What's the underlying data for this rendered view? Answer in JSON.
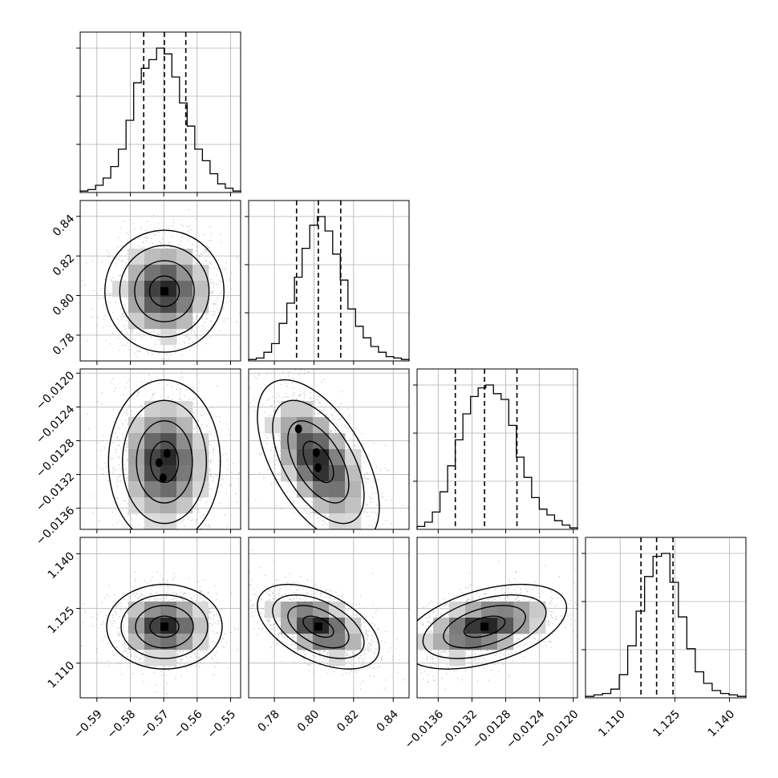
{
  "chart_data": {
    "type": "corner",
    "parameters": 4,
    "grid": true,
    "colors": {
      "line": "#000000",
      "grid": "#b0b0b0",
      "scatter": "#9a9a9a"
    },
    "histograms": [
      {
        "xlim": [
          -0.595,
          -0.547
        ],
        "counts": [
          1,
          2,
          5,
          10,
          18,
          30,
          50,
          76,
          86,
          92,
          100,
          96,
          80,
          62,
          46,
          30,
          22,
          13,
          6,
          3,
          1
        ],
        "quantiles": [
          -0.576,
          -0.5698,
          -0.5634
        ]
      },
      {
        "xlim": [
          0.767,
          0.848
        ],
        "counts": [
          1,
          2,
          6,
          12,
          26,
          40,
          58,
          78,
          94,
          100,
          90,
          74,
          56,
          36,
          24,
          16,
          10,
          6,
          3,
          2,
          1
        ],
        "quantiles": [
          0.7912,
          0.8022,
          0.8135
        ]
      },
      {
        "xlim": [
          -0.01385,
          -0.01195
        ],
        "counts": [
          2,
          5,
          12,
          26,
          44,
          62,
          80,
          92,
          98,
          100,
          94,
          90,
          72,
          50,
          36,
          22,
          14,
          10,
          6,
          3,
          1
        ],
        "quantiles": [
          -0.013397,
          -0.013051,
          -0.012667
        ]
      },
      {
        "xlim": [
          1.1005,
          1.1445
        ],
        "counts": [
          1,
          2,
          3,
          6,
          16,
          36,
          60,
          84,
          98,
          100,
          80,
          56,
          34,
          18,
          10,
          5,
          3,
          2,
          1
        ],
        "quantiles": [
          1.1157,
          1.12,
          1.1245
        ]
      }
    ],
    "pairs": [
      {
        "row": 1,
        "col": 0,
        "mean": [
          -0.5698,
          0.8022
        ],
        "sigma": [
          0.0066,
          0.0114
        ],
        "rho": 0.0,
        "modes": []
      },
      {
        "row": 2,
        "col": 0,
        "mean": [
          -0.5698,
          -0.013051
        ],
        "sigma": [
          0.0062,
          0.00036
        ],
        "rho": 0.0,
        "modes": [
          [
            -0.5714,
            -0.01306
          ],
          [
            -0.5702,
            -0.01324
          ],
          [
            -0.569,
            -0.01295
          ]
        ]
      },
      {
        "row": 2,
        "col": 1,
        "mean": [
          0.8022,
          -0.013051
        ],
        "sigma": [
          0.0114,
          0.00036
        ],
        "rho": -0.55,
        "modes": [
          [
            0.7922,
            -0.01266
          ],
          [
            0.8012,
            -0.01294
          ],
          [
            0.802,
            -0.01312
          ]
        ]
      },
      {
        "row": 3,
        "col": 0,
        "mean": [
          -0.5698,
          1.12
        ],
        "sigma": [
          0.0064,
          0.0043
        ],
        "rho": 0.0,
        "modes": []
      },
      {
        "row": 3,
        "col": 1,
        "mean": [
          0.8022,
          1.12
        ],
        "sigma": [
          0.0114,
          0.0043
        ],
        "rho": -0.5,
        "modes": []
      },
      {
        "row": 3,
        "col": 2,
        "mean": [
          -0.013051,
          1.12
        ],
        "sigma": [
          0.00036,
          0.0043
        ],
        "rho": 0.45,
        "modes": []
      }
    ],
    "axes": [
      {
        "lim": [
          -0.595,
          -0.547
        ],
        "ticks": [
          -0.59,
          -0.58,
          -0.57,
          -0.56,
          -0.55
        ],
        "tick_labels": [
          "−0.59",
          "−0.58",
          "−0.57",
          "−0.56",
          "−0.55"
        ]
      },
      {
        "lim": [
          0.767,
          0.848
        ],
        "ticks": [
          0.78,
          0.8,
          0.82,
          0.84
        ],
        "tick_labels": [
          "0.78",
          "0.80",
          "0.82",
          "0.84"
        ]
      },
      {
        "lim": [
          -0.01385,
          -0.01195
        ],
        "ticks": [
          -0.0136,
          -0.0132,
          -0.0128,
          -0.0124,
          -0.012
        ],
        "tick_labels": [
          "−0.0136",
          "−0.0132",
          "−0.0128",
          "−0.0124",
          "−0.0120"
        ]
      },
      {
        "lim": [
          1.1005,
          1.1445
        ],
        "ticks": [
          1.11,
          1.125,
          1.14
        ],
        "tick_labels": [
          "1.110",
          "1.125",
          "1.140"
        ]
      }
    ]
  }
}
